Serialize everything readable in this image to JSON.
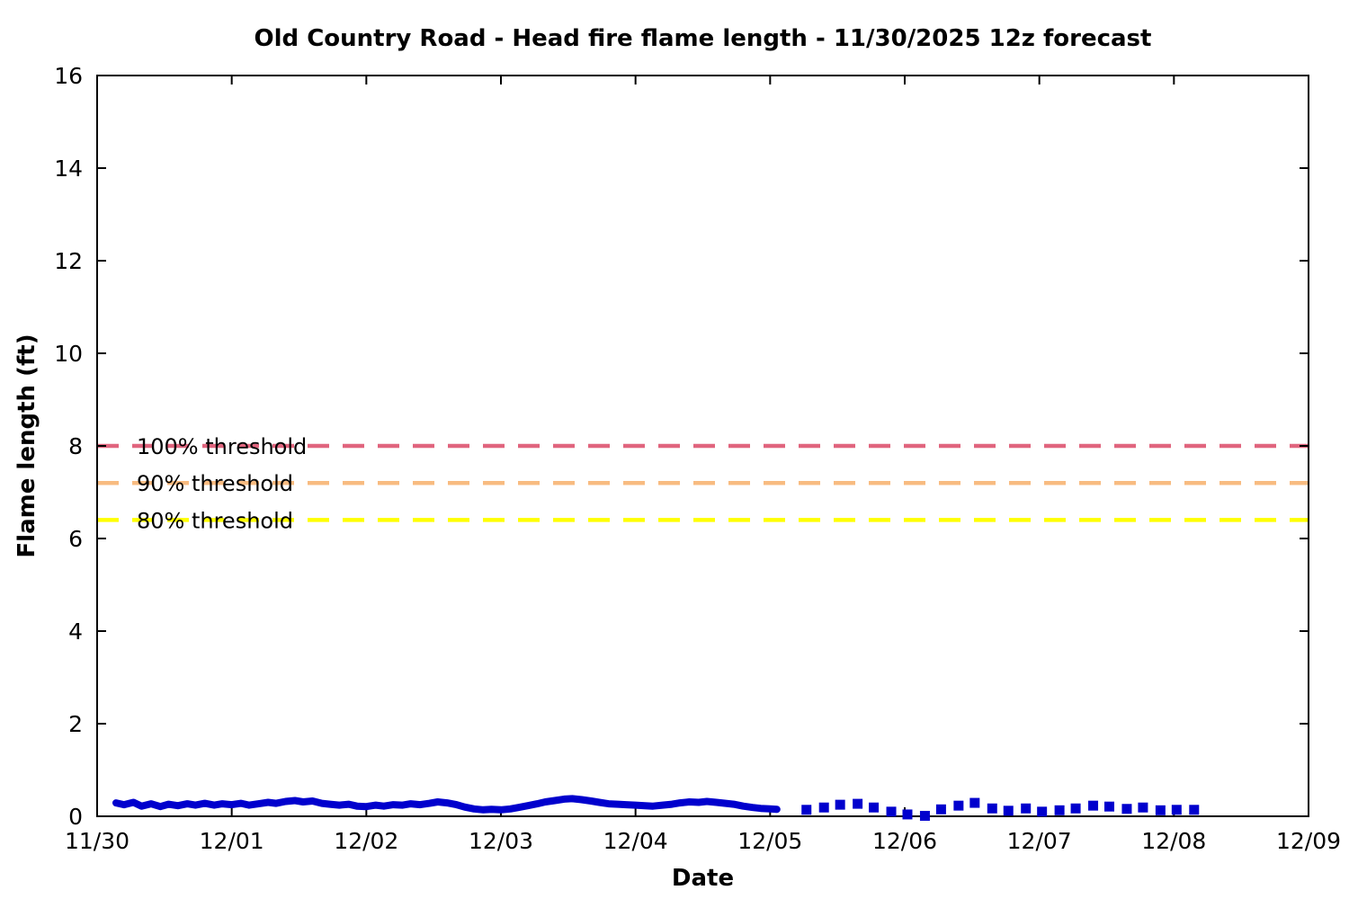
{
  "chart_data": {
    "type": "line",
    "title": "Old Country Road - Head fire flame length - 11/30/2025 12z forecast",
    "xlabel": "Date",
    "ylabel": "Flame length (ft)",
    "x_tick_labels": [
      "11/30",
      "12/01",
      "12/02",
      "12/03",
      "12/04",
      "12/05",
      "12/06",
      "12/07",
      "12/08",
      "12/09"
    ],
    "x_range_days": [
      0,
      9
    ],
    "y_ticks": [
      0,
      2,
      4,
      6,
      8,
      10,
      12,
      14,
      16
    ],
    "ylim": [
      0,
      16
    ],
    "grid": false,
    "legend": "none",
    "axis_color": "#000000",
    "thresholds": [
      {
        "label": "100% threshold",
        "value": 8.0,
        "color": "#e0657e"
      },
      {
        "label": "90% threshold",
        "value": 7.2,
        "color": "#f8bb80"
      },
      {
        "label": "80% threshold",
        "value": 6.4,
        "color": "#ffff00"
      }
    ],
    "series": [
      {
        "name": "flame-length-hourly",
        "style": "solid-thick-line",
        "color": "#0000cd",
        "points": [
          [
            0.14,
            0.29
          ],
          [
            0.2,
            0.25
          ],
          [
            0.27,
            0.3
          ],
          [
            0.33,
            0.22
          ],
          [
            0.4,
            0.27
          ],
          [
            0.47,
            0.21
          ],
          [
            0.53,
            0.26
          ],
          [
            0.6,
            0.23
          ],
          [
            0.67,
            0.27
          ],
          [
            0.73,
            0.24
          ],
          [
            0.8,
            0.28
          ],
          [
            0.87,
            0.24
          ],
          [
            0.93,
            0.27
          ],
          [
            1.0,
            0.25
          ],
          [
            1.07,
            0.28
          ],
          [
            1.13,
            0.24
          ],
          [
            1.2,
            0.27
          ],
          [
            1.27,
            0.3
          ],
          [
            1.33,
            0.28
          ],
          [
            1.4,
            0.32
          ],
          [
            1.47,
            0.34
          ],
          [
            1.53,
            0.31
          ],
          [
            1.6,
            0.33
          ],
          [
            1.67,
            0.28
          ],
          [
            1.73,
            0.26
          ],
          [
            1.8,
            0.24
          ],
          [
            1.87,
            0.26
          ],
          [
            1.93,
            0.22
          ],
          [
            2.0,
            0.21
          ],
          [
            2.07,
            0.24
          ],
          [
            2.13,
            0.22
          ],
          [
            2.2,
            0.25
          ],
          [
            2.27,
            0.24
          ],
          [
            2.33,
            0.27
          ],
          [
            2.4,
            0.25
          ],
          [
            2.47,
            0.28
          ],
          [
            2.53,
            0.31
          ],
          [
            2.6,
            0.29
          ],
          [
            2.67,
            0.25
          ],
          [
            2.73,
            0.2
          ],
          [
            2.8,
            0.16
          ],
          [
            2.87,
            0.14
          ],
          [
            2.93,
            0.15
          ],
          [
            3.0,
            0.14
          ],
          [
            3.07,
            0.16
          ],
          [
            3.13,
            0.19
          ],
          [
            3.2,
            0.23
          ],
          [
            3.27,
            0.27
          ],
          [
            3.33,
            0.31
          ],
          [
            3.4,
            0.34
          ],
          [
            3.47,
            0.37
          ],
          [
            3.53,
            0.38
          ],
          [
            3.6,
            0.36
          ],
          [
            3.67,
            0.33
          ],
          [
            3.73,
            0.3
          ],
          [
            3.8,
            0.27
          ],
          [
            3.87,
            0.26
          ],
          [
            3.93,
            0.25
          ],
          [
            4.0,
            0.24
          ],
          [
            4.07,
            0.23
          ],
          [
            4.13,
            0.22
          ],
          [
            4.2,
            0.24
          ],
          [
            4.27,
            0.26
          ],
          [
            4.33,
            0.29
          ],
          [
            4.4,
            0.31
          ],
          [
            4.47,
            0.3
          ],
          [
            4.53,
            0.32
          ],
          [
            4.6,
            0.3
          ],
          [
            4.67,
            0.28
          ],
          [
            4.73,
            0.26
          ],
          [
            4.8,
            0.22
          ],
          [
            4.87,
            0.19
          ],
          [
            4.93,
            0.17
          ],
          [
            5.0,
            0.16
          ],
          [
            5.05,
            0.15
          ]
        ]
      },
      {
        "name": "flame-length-3hourly",
        "style": "square-markers",
        "color": "#0000cd",
        "points": [
          [
            5.27,
            0.14
          ],
          [
            5.4,
            0.19
          ],
          [
            5.52,
            0.25
          ],
          [
            5.65,
            0.27
          ],
          [
            5.77,
            0.19
          ],
          [
            5.9,
            0.1
          ],
          [
            6.02,
            0.04
          ],
          [
            6.15,
            0.01
          ],
          [
            6.27,
            0.15
          ],
          [
            6.4,
            0.23
          ],
          [
            6.52,
            0.29
          ],
          [
            6.65,
            0.17
          ],
          [
            6.77,
            0.12
          ],
          [
            6.9,
            0.17
          ],
          [
            7.02,
            0.1
          ],
          [
            7.15,
            0.13
          ],
          [
            7.27,
            0.17
          ],
          [
            7.4,
            0.23
          ],
          [
            7.52,
            0.21
          ],
          [
            7.65,
            0.16
          ],
          [
            7.77,
            0.19
          ],
          [
            7.9,
            0.13
          ],
          [
            8.02,
            0.14
          ],
          [
            8.15,
            0.14
          ]
        ]
      }
    ]
  }
}
